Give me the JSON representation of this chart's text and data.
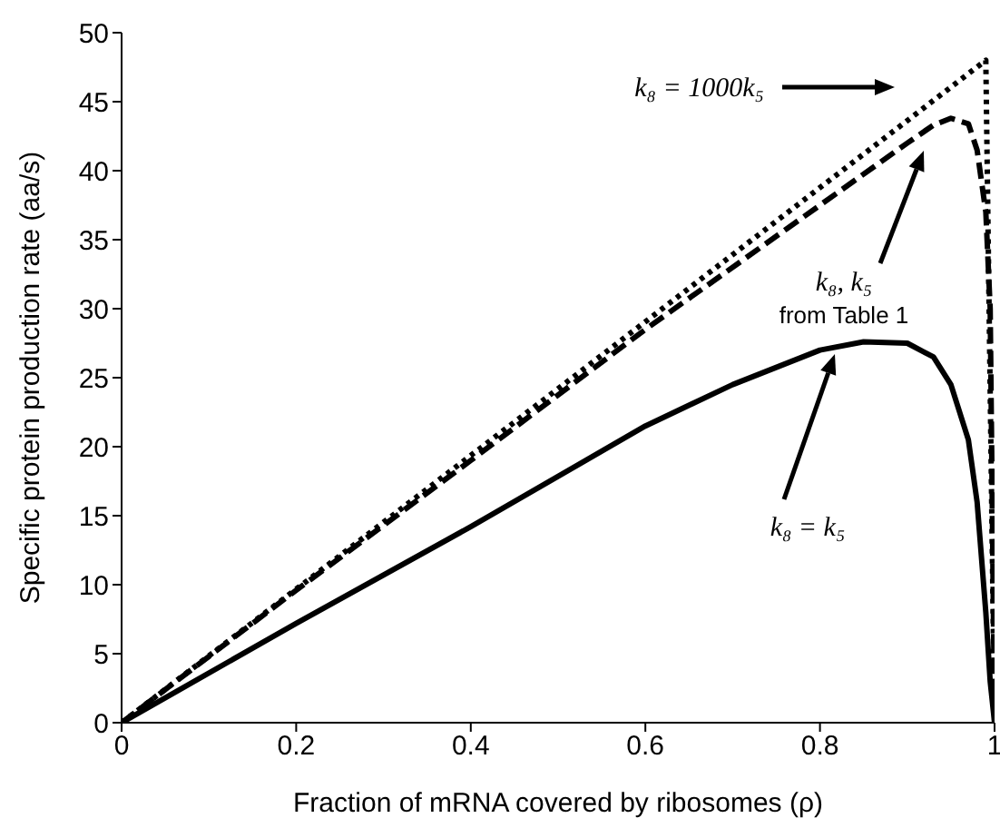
{
  "chart_data": {
    "type": "line",
    "xlabel": "Fraction of mRNA covered by ribosomes (ρ)",
    "ylabel": "Specific protein production rate (aa/s)",
    "xlim": [
      0,
      1
    ],
    "xticks": [
      0,
      0.2,
      0.4,
      0.6,
      0.8,
      1
    ],
    "ylim": [
      0,
      50
    ],
    "yticks": [
      0,
      5,
      10,
      15,
      20,
      25,
      30,
      35,
      40,
      45,
      50
    ],
    "marker": "none",
    "series": [
      {
        "color": "#000000",
        "line_style": "dotted",
        "x": [
          0,
          0.5,
          0.99,
          1
        ],
        "values": [
          0,
          24.2,
          48,
          0
        ]
      },
      {
        "color": "#000000",
        "line_style": "dashed",
        "x": [
          0,
          0.2,
          0.4,
          0.6,
          0.8,
          0.9,
          0.93,
          0.95,
          0.97,
          0.98,
          0.99,
          0.995,
          1
        ],
        "values": [
          0,
          9.6,
          19,
          28.5,
          37.5,
          42,
          43.3,
          43.8,
          43.4,
          41.5,
          37,
          30,
          0
        ]
      },
      {
        "color": "#000000",
        "line_style": "solid",
        "x": [
          0,
          0.2,
          0.4,
          0.6,
          0.7,
          0.8,
          0.85,
          0.9,
          0.93,
          0.95,
          0.97,
          0.98,
          0.99,
          0.995,
          1
        ],
        "values": [
          0,
          7.2,
          14.2,
          21.5,
          24.5,
          27,
          27.6,
          27.5,
          26.5,
          24.5,
          20.5,
          16,
          8,
          3,
          0
        ]
      }
    ],
    "annotations": [
      "k₈ = 1000k₅",
      "k₈, k₅",
      "from Table 1",
      "k₈ = k₅"
    ]
  }
}
